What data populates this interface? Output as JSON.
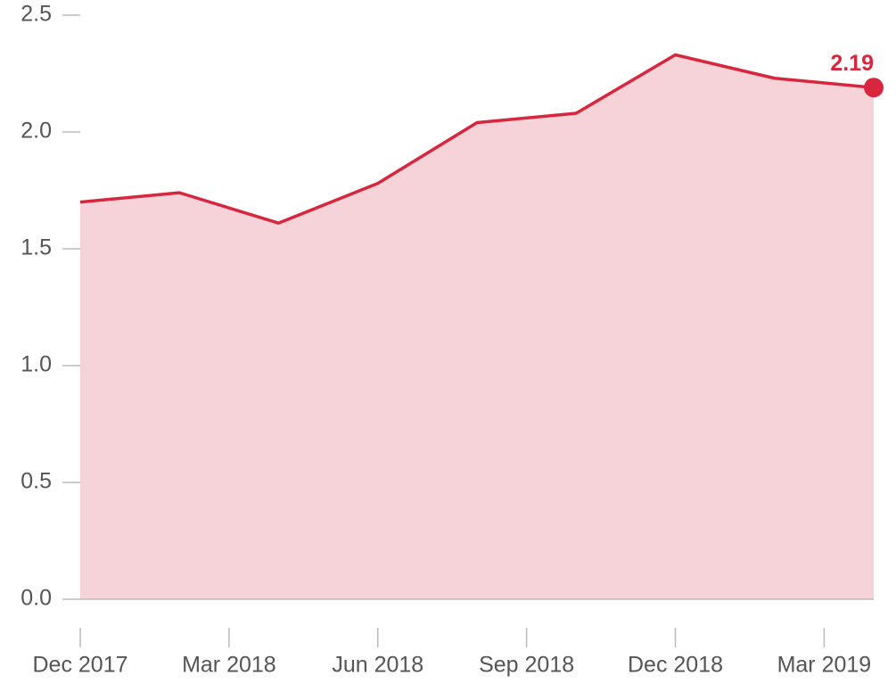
{
  "chart_data": {
    "type": "area",
    "x": [
      "2017-12",
      "2018-02",
      "2018-04",
      "2018-06",
      "2018-08",
      "2018-10",
      "2018-12",
      "2019-02",
      "2019-04"
    ],
    "values": [
      1.7,
      1.74,
      1.61,
      1.78,
      2.04,
      2.08,
      2.33,
      2.23,
      2.19
    ],
    "value_labels": [
      null,
      null,
      null,
      null,
      null,
      null,
      null,
      null,
      "2.19"
    ],
    "color": "#d7263d",
    "fill": "#f6d3d8",
    "xlim": [
      "2017-12",
      "2019-04"
    ],
    "xticks": [
      {
        "value": "2017-12",
        "label": "Dec 2017"
      },
      {
        "value": "2018-03",
        "label": "Mar 2018"
      },
      {
        "value": "2018-06",
        "label": "Jun 2018"
      },
      {
        "value": "2018-09",
        "label": "Sep 2018"
      },
      {
        "value": "2018-12",
        "label": "Dec 2018"
      },
      {
        "value": "2019-03",
        "label": "Mar 2019"
      }
    ],
    "ylim": [
      0,
      2.5
    ],
    "yticks": [
      {
        "value": 0,
        "label": "0.0"
      },
      0.5,
      {
        "value": 1,
        "label": "1.0"
      },
      1.5,
      {
        "value": 2,
        "label": "2.0"
      },
      2.5
    ]
  }
}
